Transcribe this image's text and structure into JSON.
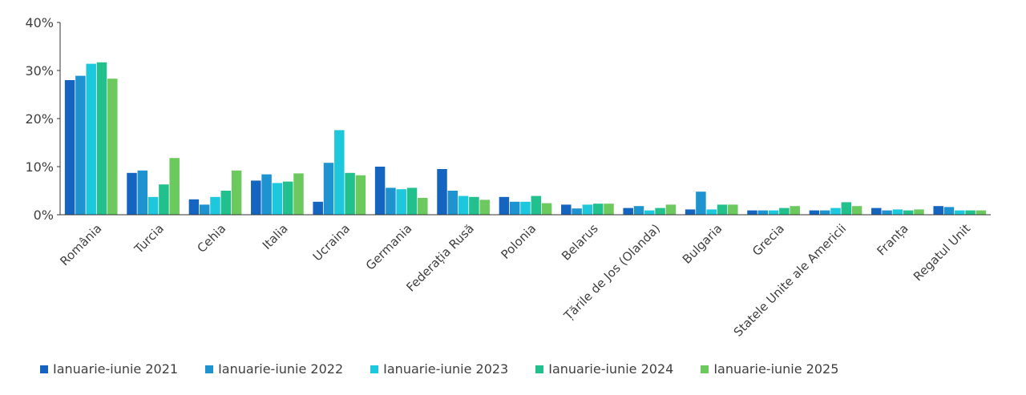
{
  "chart_data": {
    "type": "bar",
    "categories": [
      "România",
      "Turcia",
      "Cehia",
      "Italia",
      "Ucraina",
      "Germania",
      "Federația Rusă",
      "Polonia",
      "Belarus",
      "Țările de Jos (Olanda)",
      "Bulgaria",
      "Grecia",
      "Statele Unite ale Americii",
      "Franța",
      "Regatul Unit"
    ],
    "series": [
      {
        "name": "Ianuarie-iunie 2021",
        "color": "#1565c0",
        "values": [
          28.0,
          8.7,
          3.2,
          7.1,
          2.7,
          10.0,
          9.5,
          3.7,
          2.1,
          1.4,
          1.1,
          0.9,
          0.9,
          1.4,
          1.8
        ]
      },
      {
        "name": "Ianuarie-iunie 2022",
        "color": "#1f93d0",
        "values": [
          28.9,
          9.2,
          2.1,
          8.4,
          10.8,
          5.6,
          5.0,
          2.7,
          1.3,
          1.8,
          4.8,
          0.9,
          0.9,
          0.9,
          1.6
        ]
      },
      {
        "name": "Ianuarie-iunie 2023",
        "color": "#1ec8dc",
        "values": [
          31.4,
          3.7,
          3.7,
          6.6,
          17.6,
          5.3,
          3.9,
          2.7,
          2.1,
          0.9,
          1.1,
          0.9,
          1.4,
          1.1,
          0.9
        ]
      },
      {
        "name": "Ianuarie-iunie 2024",
        "color": "#21c08d",
        "values": [
          31.7,
          6.3,
          5.0,
          6.9,
          8.7,
          5.6,
          3.7,
          3.9,
          2.3,
          1.4,
          2.1,
          1.4,
          2.6,
          0.9,
          0.9
        ]
      },
      {
        "name": "Ianuarie-iunie 2025",
        "color": "#6cc95e",
        "values": [
          28.3,
          11.8,
          9.2,
          8.6,
          8.2,
          3.5,
          3.1,
          2.4,
          2.3,
          2.1,
          2.1,
          1.8,
          1.8,
          1.1,
          0.9
        ]
      }
    ],
    "yticks": [
      "0%",
      "10%",
      "20%",
      "30%",
      "40%"
    ],
    "ylim": [
      0,
      40
    ],
    "title": "",
    "xlabel": "",
    "ylabel": "",
    "grid": false,
    "legend_position": "bottom"
  }
}
